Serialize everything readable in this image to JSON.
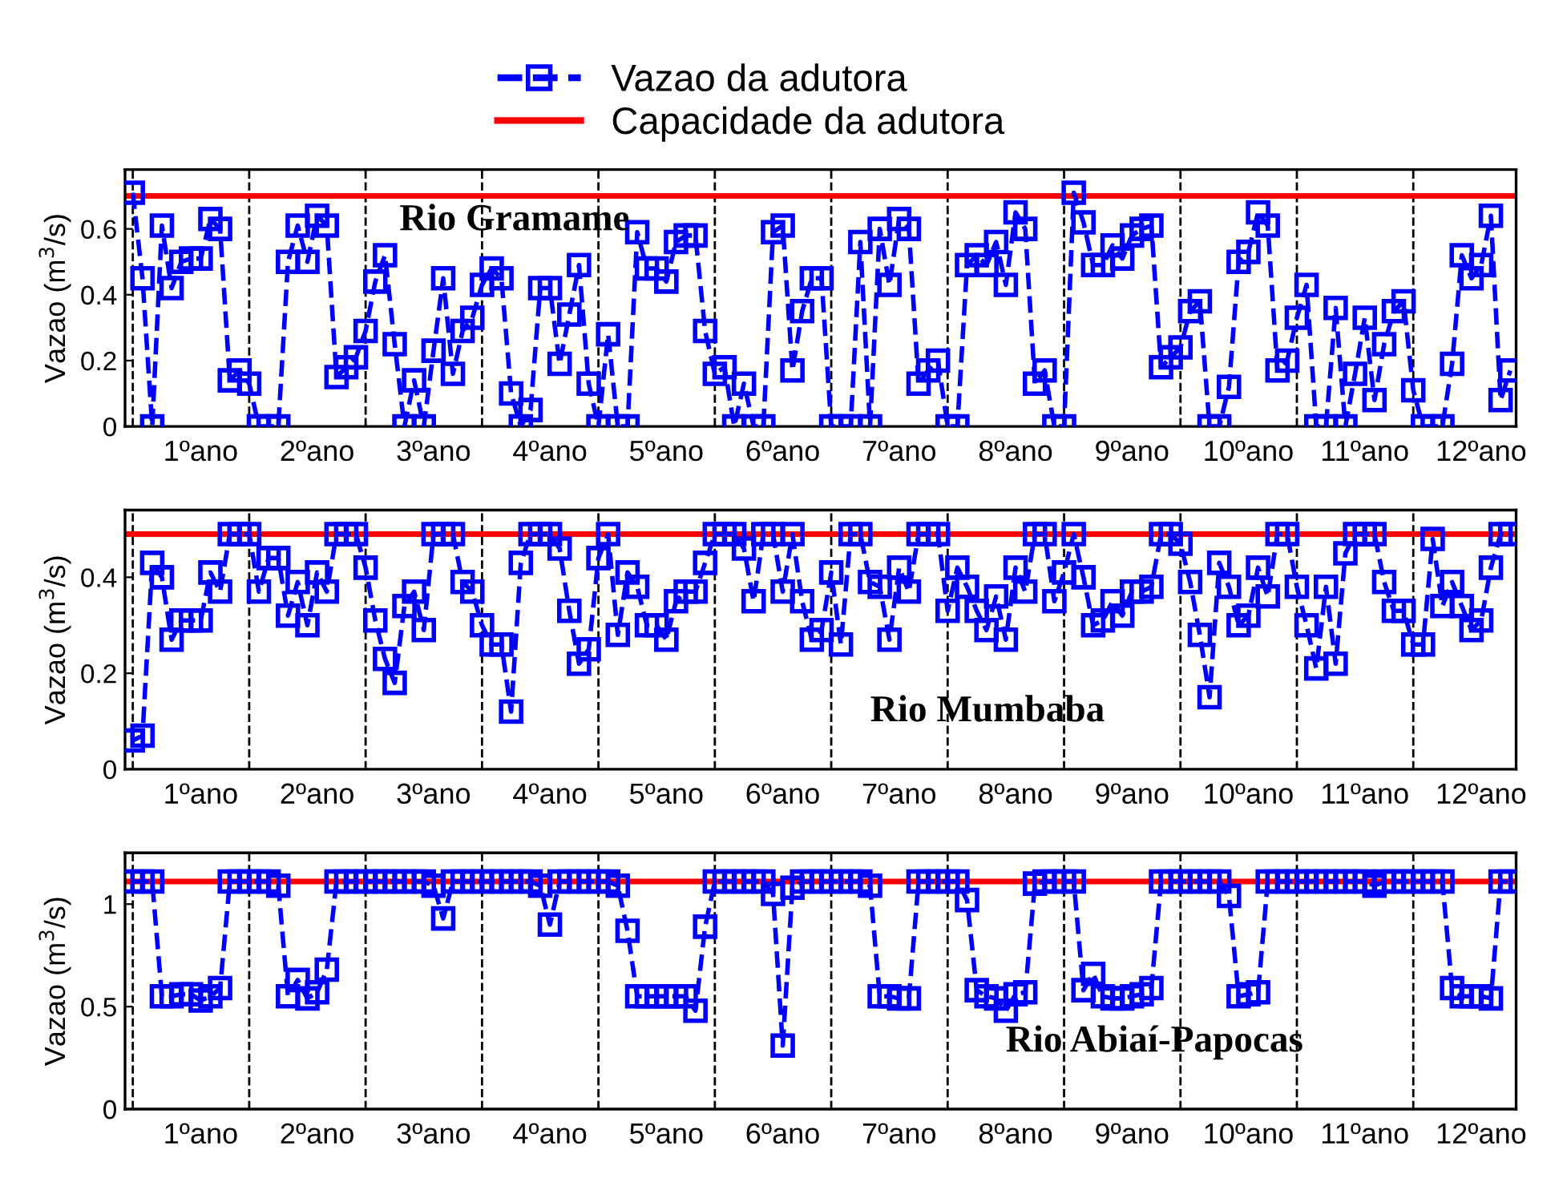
{
  "chart_data": [
    {
      "type": "line",
      "title": "Rio Gramame",
      "ylabel": "Vazao (m$^{3}$/s)",
      "legend": "top",
      "grid": false,
      "ylim": [
        0,
        0.78
      ],
      "yticks": [
        0,
        0.2,
        0.4,
        0.6
      ],
      "categories": [
        null,
        null,
        null,
        null,
        null,
        null,
        null,
        "1ºano",
        null,
        null,
        null,
        null,
        null,
        null,
        null,
        null,
        null,
        null,
        null,
        "2ºano",
        null,
        null,
        null,
        null,
        null,
        null,
        null,
        null,
        null,
        null,
        null,
        "3ºano",
        null,
        null,
        null,
        null,
        null,
        null,
        null,
        null,
        null,
        null,
        null,
        "4ºano",
        null,
        null,
        null,
        null,
        null,
        null,
        null,
        null,
        null,
        null,
        null,
        "5ºano",
        null,
        null,
        null,
        null,
        null,
        null,
        null,
        null,
        null,
        null,
        null,
        "6ºano",
        null,
        null,
        null,
        null,
        null,
        null,
        null,
        null,
        null,
        null,
        null,
        "7ºano",
        null,
        null,
        null,
        null,
        null,
        null,
        null,
        null,
        null,
        null,
        null,
        "8ºano",
        null,
        null,
        null,
        null,
        null,
        null,
        null,
        null,
        null,
        null,
        null,
        "9ºano",
        null,
        null,
        null,
        null,
        null,
        null,
        null,
        null,
        null,
        null,
        null,
        "10ºano",
        null,
        null,
        null,
        null,
        null,
        null,
        null,
        null,
        null,
        null,
        null,
        "11ºano",
        null,
        null,
        null,
        null,
        null,
        null,
        null,
        null,
        null,
        null,
        null,
        "12ºano",
        null,
        null,
        null
      ],
      "ref_lines": [
        {
          "axis": "y",
          "value": 0.7,
          "label": "Capacidade da adutora",
          "color": "#ff0000",
          "line_style": "solid"
        }
      ],
      "series": [
        {
          "name": "Vazao da adutora",
          "color": "#0000ff",
          "marker": "square",
          "line_style": "dashed",
          "values": [
            0.71,
            0.45,
            0,
            0.61,
            0.42,
            0.5,
            0.51,
            0.51,
            0.63,
            0.6,
            0.14,
            0.17,
            0.13,
            0,
            0,
            0,
            0.5,
            0.61,
            0.5,
            0.64,
            0.61,
            0.15,
            0.18,
            0.21,
            0.29,
            0.44,
            0.52,
            0.25,
            0,
            0.14,
            0,
            0.23,
            0.45,
            0.16,
            0.29,
            0.33,
            0.43,
            0.48,
            0.45,
            0.1,
            0,
            0.05,
            0.42,
            0.42,
            0.19,
            0.34,
            0.49,
            0.13,
            0,
            0.28,
            0,
            0,
            0.59,
            0.48,
            0.48,
            0.44,
            0.56,
            0.58,
            0.58,
            0.29,
            0.16,
            0.18,
            0,
            0.13,
            0,
            0,
            0.59,
            0.61,
            0.17,
            0.35,
            0.45,
            0.45,
            0,
            0,
            0,
            0.56,
            0,
            0.6,
            0.43,
            0.63,
            0.6,
            0.13,
            0.17,
            0.2,
            0,
            0,
            0.49,
            0.52,
            0.49,
            0.56,
            0.43,
            0.65,
            0.6,
            0.13,
            0.17,
            0,
            0,
            0.71,
            0.62,
            0.49,
            0.49,
            0.55,
            0.51,
            0.58,
            0.6,
            0.61,
            0.18,
            0.21,
            0.24,
            0.35,
            0.38,
            0,
            0,
            0.12,
            0.5,
            0.53,
            0.65,
            0.61,
            0.17,
            0.2,
            0.33,
            0.43,
            0,
            0,
            0.36,
            0,
            0.16,
            0.33,
            0.08,
            0.25,
            0.35,
            0.38,
            0.11,
            0,
            0,
            0,
            0.19,
            0.52,
            0.45,
            0.49,
            0.64,
            0.08,
            0.17
          ]
        }
      ]
    },
    {
      "type": "line",
      "title": "Rio Mumbaba",
      "ylabel": "Vazao (m$^{3}$/s)",
      "grid": false,
      "ylim": [
        0,
        0.54
      ],
      "yticks": [
        0,
        0.2,
        0.4
      ],
      "categories": [
        null,
        null,
        null,
        null,
        null,
        null,
        null,
        "1ºano",
        null,
        null,
        null,
        null,
        null,
        null,
        null,
        null,
        null,
        null,
        null,
        "2ºano",
        null,
        null,
        null,
        null,
        null,
        null,
        null,
        null,
        null,
        null,
        null,
        "3ºano",
        null,
        null,
        null,
        null,
        null,
        null,
        null,
        null,
        null,
        null,
        null,
        "4ºano",
        null,
        null,
        null,
        null,
        null,
        null,
        null,
        null,
        null,
        null,
        null,
        "5ºano",
        null,
        null,
        null,
        null,
        null,
        null,
        null,
        null,
        null,
        null,
        null,
        "6ºano",
        null,
        null,
        null,
        null,
        null,
        null,
        null,
        null,
        null,
        null,
        null,
        "7ºano",
        null,
        null,
        null,
        null,
        null,
        null,
        null,
        null,
        null,
        null,
        null,
        "8ºano",
        null,
        null,
        null,
        null,
        null,
        null,
        null,
        null,
        null,
        null,
        null,
        "9ºano",
        null,
        null,
        null,
        null,
        null,
        null,
        null,
        null,
        null,
        null,
        null,
        "10ºano",
        null,
        null,
        null,
        null,
        null,
        null,
        null,
        null,
        null,
        null,
        null,
        "11ºano",
        null,
        null,
        null,
        null,
        null,
        null,
        null,
        null,
        null,
        null,
        null,
        "12ºano",
        null,
        null,
        null
      ],
      "ref_lines": [
        {
          "axis": "y",
          "value": 0.49,
          "color": "#ff0000",
          "line_style": "solid"
        }
      ],
      "series": [
        {
          "color": "#0000ff",
          "marker": "square",
          "line_style": "dashed",
          "values": [
            0.06,
            0.07,
            0.43,
            0.4,
            0.27,
            0.31,
            0.31,
            0.31,
            0.41,
            0.37,
            0.49,
            0.49,
            0.49,
            0.37,
            0.44,
            0.44,
            0.32,
            0.39,
            0.3,
            0.41,
            0.37,
            0.49,
            0.49,
            0.49,
            0.42,
            0.31,
            0.23,
            0.18,
            0.34,
            0.37,
            0.29,
            0.49,
            0.49,
            0.49,
            0.39,
            0.37,
            0.3,
            0.26,
            0.26,
            0.12,
            0.43,
            0.49,
            0.49,
            0.49,
            0.46,
            0.33,
            0.22,
            0.25,
            0.44,
            0.49,
            0.28,
            0.41,
            0.38,
            0.3,
            0.3,
            0.27,
            0.35,
            0.37,
            0.37,
            0.43,
            0.49,
            0.49,
            0.49,
            0.46,
            0.35,
            0.49,
            0.49,
            0.37,
            0.49,
            0.35,
            0.27,
            0.29,
            0.41,
            0.26,
            0.49,
            0.49,
            0.39,
            0.38,
            0.27,
            0.42,
            0.37,
            0.49,
            0.49,
            0.49,
            0.33,
            0.42,
            0.38,
            0.33,
            0.29,
            0.36,
            0.27,
            0.42,
            0.37,
            0.49,
            0.49,
            0.35,
            0.41,
            0.49,
            0.4,
            0.3,
            0.31,
            0.35,
            0.32,
            0.37,
            0.37,
            0.38,
            0.49,
            0.49,
            0.47,
            0.39,
            0.28,
            0.15,
            0.43,
            0.38,
            0.3,
            0.32,
            0.42,
            0.36,
            0.49,
            0.49,
            0.38,
            0.3,
            0.21,
            0.38,
            0.22,
            0.45,
            0.49,
            0.49,
            0.49,
            0.39,
            0.33,
            0.33,
            0.26,
            0.26,
            0.48,
            0.34,
            0.39,
            0.34,
            0.29,
            0.31,
            0.42,
            0.49,
            0.49
          ]
        }
      ]
    },
    {
      "type": "line",
      "title": "Rio Abiaí-Papocas",
      "ylabel": "Vazao (m$^{3}$/s)",
      "grid": false,
      "ylim": [
        0,
        1.25
      ],
      "yticks": [
        0,
        0.5,
        1
      ],
      "categories": [
        null,
        null,
        null,
        null,
        null,
        null,
        null,
        "1ºano",
        null,
        null,
        null,
        null,
        null,
        null,
        null,
        null,
        null,
        null,
        null,
        "2ºano",
        null,
        null,
        null,
        null,
        null,
        null,
        null,
        null,
        null,
        null,
        null,
        "3ºano",
        null,
        null,
        null,
        null,
        null,
        null,
        null,
        null,
        null,
        null,
        null,
        "4ºano",
        null,
        null,
        null,
        null,
        null,
        null,
        null,
        null,
        null,
        null,
        null,
        "5ºano",
        null,
        null,
        null,
        null,
        null,
        null,
        null,
        null,
        null,
        null,
        null,
        "6ºano",
        null,
        null,
        null,
        null,
        null,
        null,
        null,
        null,
        null,
        null,
        null,
        "7ºano",
        null,
        null,
        null,
        null,
        null,
        null,
        null,
        null,
        null,
        null,
        null,
        "8ºano",
        null,
        null,
        null,
        null,
        null,
        null,
        null,
        null,
        null,
        null,
        null,
        "9ºano",
        null,
        null,
        null,
        null,
        null,
        null,
        null,
        null,
        null,
        null,
        null,
        "10ºano",
        null,
        null,
        null,
        null,
        null,
        null,
        null,
        null,
        null,
        null,
        null,
        "11ºano",
        null,
        null,
        null,
        null,
        null,
        null,
        null,
        null,
        null,
        null,
        null,
        "12ºano",
        null,
        null,
        null
      ],
      "ref_lines": [
        {
          "axis": "y",
          "value": 1.11,
          "color": "#ff0000",
          "line_style": "solid"
        }
      ],
      "series": [
        {
          "color": "#0000ff",
          "marker": "square",
          "line_style": "dashed",
          "values": [
            1.11,
            1.11,
            1.11,
            0.55,
            0.55,
            0.56,
            0.56,
            0.53,
            0.55,
            0.59,
            1.11,
            1.11,
            1.11,
            1.11,
            1.11,
            1.09,
            0.55,
            0.63,
            0.54,
            0.57,
            0.68,
            1.11,
            1.11,
            1.11,
            1.11,
            1.11,
            1.11,
            1.11,
            1.11,
            1.11,
            1.11,
            1.09,
            0.93,
            1.11,
            1.11,
            1.11,
            1.11,
            1.11,
            1.11,
            1.11,
            1.11,
            1.11,
            1.09,
            0.9,
            1.11,
            1.11,
            1.11,
            1.11,
            1.11,
            1.11,
            1.09,
            0.87,
            0.55,
            0.55,
            0.55,
            0.55,
            0.55,
            0.55,
            0.48,
            0.89,
            1.11,
            1.11,
            1.11,
            1.11,
            1.11,
            1.11,
            1.05,
            0.31,
            1.08,
            1.11,
            1.11,
            1.11,
            1.11,
            1.11,
            1.11,
            1.11,
            1.09,
            0.55,
            0.55,
            0.54,
            0.54,
            1.11,
            1.11,
            1.11,
            1.11,
            1.11,
            1.02,
            0.58,
            0.55,
            0.54,
            0.48,
            0.56,
            0.57,
            1.1,
            1.11,
            1.11,
            1.11,
            1.11,
            0.58,
            0.66,
            0.55,
            0.54,
            0.54,
            0.55,
            0.56,
            0.59,
            1.11,
            1.11,
            1.11,
            1.11,
            1.11,
            1.11,
            1.11,
            1.04,
            0.55,
            0.56,
            0.57,
            1.11,
            1.11,
            1.11,
            1.11,
            1.11,
            1.11,
            1.11,
            1.11,
            1.11,
            1.11,
            1.11,
            1.09,
            1.11,
            1.11,
            1.11,
            1.11,
            1.11,
            1.11,
            1.11,
            0.59,
            0.55,
            0.55,
            0.55,
            0.54,
            1.11,
            1.11
          ]
        }
      ]
    }
  ]
}
